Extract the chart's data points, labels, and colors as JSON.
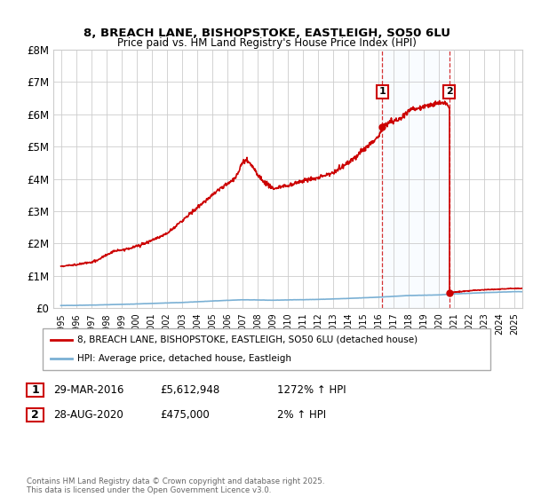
{
  "title": "8, BREACH LANE, BISHOPSTOKE, EASTLEIGH, SO50 6LU",
  "subtitle": "Price paid vs. HM Land Registry's House Price Index (HPI)",
  "ylabel_ticks": [
    "£0",
    "£1M",
    "£2M",
    "£3M",
    "£4M",
    "£5M",
    "£6M",
    "£7M",
    "£8M"
  ],
  "ylim": [
    0,
    8000000
  ],
  "xlim_start": 1994.5,
  "xlim_end": 2025.5,
  "line1_color": "#cc0000",
  "line2_color": "#7ab0d4",
  "vline_color": "#cc0000",
  "shade_color": "#ddeeff",
  "event1_x": 2016.24,
  "event1_y": 5612948,
  "event2_x": 2020.66,
  "event2_y": 475000,
  "legend1": "8, BREACH LANE, BISHOPSTOKE, EASTLEIGH, SO50 6LU (detached house)",
  "legend2": "HPI: Average price, detached house, Eastleigh",
  "ann1_date": "29-MAR-2016",
  "ann1_price": "£5,612,948",
  "ann1_pct": "1272% ↑ HPI",
  "ann2_date": "28-AUG-2020",
  "ann2_price": "£475,000",
  "ann2_pct": "2% ↑ HPI",
  "footer": "Contains HM Land Registry data © Crown copyright and database right 2025.\nThis data is licensed under the Open Government Licence v3.0.",
  "background_color": "#ffffff",
  "grid_color": "#cccccc"
}
